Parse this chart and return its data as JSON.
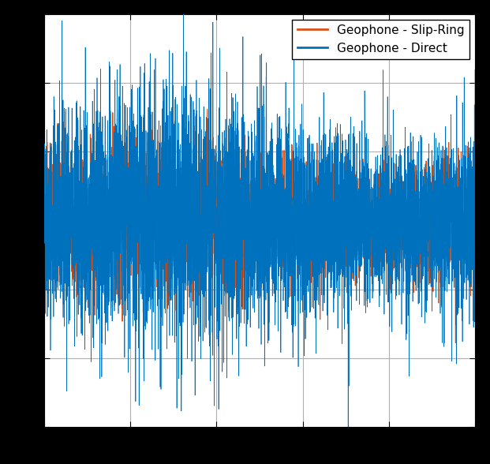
{
  "title": "",
  "xlabel": "",
  "ylabel": "",
  "legend_entries": [
    "Geophone - Direct",
    "Geophone - Slip-Ring"
  ],
  "color_direct": "#0072BD",
  "color_slipring": "#D95319",
  "n_points": 5000,
  "direct_std": 0.38,
  "slipring_std": 0.22,
  "ylim": [
    -1.5,
    1.5
  ],
  "grid": true,
  "figsize": [
    6.21,
    5.88
  ],
  "dpi": 100,
  "seed": 42,
  "background_color": "#ffffff",
  "outer_background": "#000000",
  "legend_fontsize": 11
}
